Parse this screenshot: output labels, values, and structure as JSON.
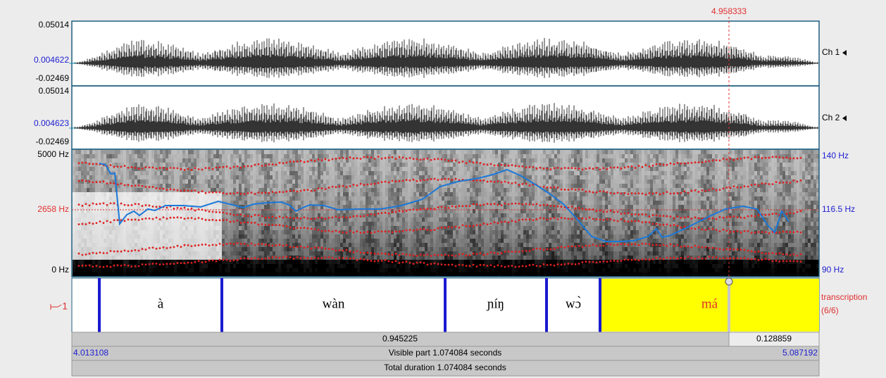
{
  "cursor_time": "4.958333",
  "channels": [
    {
      "max": "0.05014",
      "mid": "0.004622",
      "min": "-0.02469",
      "label": "Ch 1"
    },
    {
      "max": "0.05014",
      "mid": "0.004623",
      "min": "-0.02469",
      "label": "Ch 2"
    }
  ],
  "spectrogram": {
    "freq_top": "5000 Hz",
    "freq_cursor": "2658 Hz",
    "freq_bottom": "0 Hz",
    "pitch_top": "140 Hz",
    "pitch_cursor": "116.5 Hz",
    "pitch_bottom": "90 Hz"
  },
  "tier": {
    "number": "1",
    "name": "transcription",
    "count": "(6/6)",
    "intervals": [
      "à",
      "wàn",
      "ɲíŋ",
      "wɔ̀",
      "má"
    ]
  },
  "selection": {
    "before": "0.945225",
    "after": "0.128859"
  },
  "visible": {
    "start": "4.013108",
    "label": "Visible part 1.074084 seconds",
    "end": "5.087192"
  },
  "total": "Total duration 1.074084 seconds"
}
